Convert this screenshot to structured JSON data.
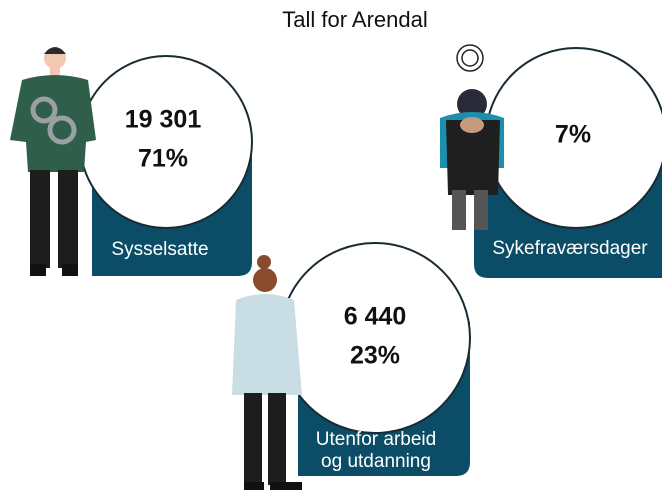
{
  "header": {
    "title": "Tall for Arendal"
  },
  "cards": [
    {
      "count": "19 301",
      "share": "71%",
      "label_lines": [
        "Sysselsatte"
      ]
    },
    {
      "share": "7%",
      "label_lines": [
        "Sykefraværsdager"
      ]
    },
    {
      "count": "6 440",
      "share": "23%",
      "label_lines": [
        "Utenfor arbeid",
        "og utdanning"
      ]
    }
  ]
}
